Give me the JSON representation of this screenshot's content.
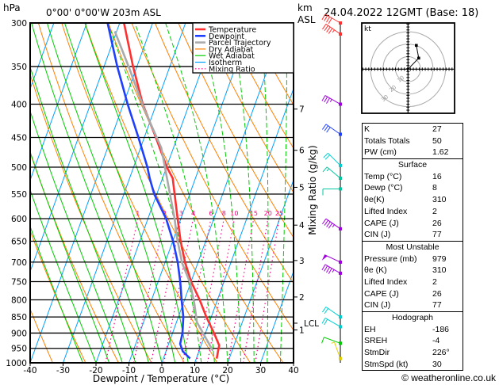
{
  "header": {
    "pressure_unit": "hPa",
    "location": "0°00' 0°00'W 203m ASL",
    "km_unit": "km",
    "asl_unit": "ASL",
    "datetime": "24.04.2022 12GMT (Base: 18)"
  },
  "chart_data": {
    "type": "line",
    "subtype": "skew-T log-P",
    "xlabel": "Dewpoint / Temperature (°C)",
    "ylabel": "hPa",
    "right_label": "Mixing Ratio (g/kg)",
    "xlim": [
      -40,
      40
    ],
    "ylim": [
      1000,
      300
    ],
    "x_ticks": [
      "-40",
      "-30",
      "-20",
      "-10",
      "0",
      "10",
      "20",
      "30",
      "40"
    ],
    "pressure_ticks": [
      "300",
      "350",
      "400",
      "450",
      "500",
      "550",
      "600",
      "650",
      "700",
      "750",
      "800",
      "850",
      "900",
      "950",
      "1000"
    ],
    "mixing_ratio_labels": [
      "1",
      "2",
      "3",
      "4",
      "6",
      "8",
      "10",
      "15",
      "20",
      "25"
    ],
    "km_ticks": [
      {
        "label": "1",
        "p": 890
      },
      {
        "label": "2",
        "p": 792
      },
      {
        "label": "3",
        "p": 696
      },
      {
        "label": "4",
        "p": 614
      },
      {
        "label": "5",
        "p": 537
      },
      {
        "label": "6",
        "p": 471
      },
      {
        "label": "7",
        "p": 407
      }
    ],
    "lcl": {
      "label": "LCL",
      "p": 869
    },
    "legend": {
      "placement": "top-right",
      "items": [
        {
          "label": "Temperature",
          "color": "#ff3030",
          "style": "thick"
        },
        {
          "label": "Dewpoint",
          "color": "#1f3fff",
          "style": "thick"
        },
        {
          "label": "Parcel Trajectory",
          "color": "#aaaaaa",
          "style": "thick"
        },
        {
          "label": "Dry Adiabat",
          "color": "#ff8000",
          "style": "thin"
        },
        {
          "label": "Wet Adiabat",
          "color": "#00cc00",
          "style": "thin"
        },
        {
          "label": "Isotherm",
          "color": "#00a0ff",
          "style": "thin"
        },
        {
          "label": "Mixing Ratio",
          "color": "#ff0080",
          "style": "dotted"
        }
      ]
    },
    "series": [
      {
        "name": "Temperature",
        "color": "#ff3030",
        "points": [
          [
            985,
            16.2
          ],
          [
            960,
            15.8
          ],
          [
            940,
            15.5
          ],
          [
            900,
            12.6
          ],
          [
            850,
            8.5
          ],
          [
            800,
            4.6
          ],
          [
            750,
            0
          ],
          [
            700,
            -4
          ],
          [
            650,
            -7.6
          ],
          [
            600,
            -11
          ],
          [
            550,
            -14.6
          ],
          [
            520,
            -16.9
          ],
          [
            500,
            -19.9
          ],
          [
            450,
            -26.5
          ],
          [
            400,
            -34.1
          ],
          [
            350,
            -41.2
          ],
          [
            300,
            -48.7
          ]
        ]
      },
      {
        "name": "Dewpoint",
        "color": "#1f3fff",
        "points": [
          [
            985,
            8.1
          ],
          [
            960,
            5.1
          ],
          [
            935,
            3.5
          ],
          [
            900,
            3
          ],
          [
            850,
            1.5
          ],
          [
            800,
            -0.9
          ],
          [
            750,
            -3.3
          ],
          [
            700,
            -6.2
          ],
          [
            650,
            -9.9
          ],
          [
            600,
            -14.5
          ],
          [
            550,
            -20.8
          ],
          [
            520,
            -23.9
          ],
          [
            500,
            -25.8
          ],
          [
            450,
            -31.8
          ],
          [
            400,
            -38.7
          ],
          [
            350,
            -46
          ],
          [
            300,
            -53.7
          ]
        ]
      },
      {
        "name": "Parcel Trajectory",
        "color": "#aaaaaa",
        "points": [
          [
            958,
            14.2
          ],
          [
            866,
            6.2
          ],
          [
            811,
            3.4
          ],
          [
            753,
            -0.2
          ],
          [
            702,
            -4.8
          ],
          [
            642,
            -9.1
          ],
          [
            600,
            -11.9
          ],
          [
            467,
            -23.7
          ],
          [
            406,
            -33.3
          ],
          [
            353,
            -42
          ],
          [
            309,
            -50.6
          ]
        ]
      }
    ],
    "winds": [
      {
        "p": 300,
        "dir": 240,
        "kt": 40,
        "color": "#ff3030"
      },
      {
        "p": 312,
        "dir": 235,
        "kt": 45,
        "color": "#ff3030"
      },
      {
        "p": 400,
        "dir": 240,
        "kt": 35,
        "color": "#a000e0"
      },
      {
        "p": 445,
        "dir": 235,
        "kt": 30,
        "color": "#1f3fff"
      },
      {
        "p": 497,
        "dir": 225,
        "kt": 20,
        "color": "#00d0d0"
      },
      {
        "p": 520,
        "dir": 230,
        "kt": 15,
        "color": "#00c8a0"
      },
      {
        "p": 540,
        "dir": 270,
        "kt": 10,
        "color": "#00c8a0"
      },
      {
        "p": 622,
        "dir": 235,
        "kt": 45,
        "color": "#a000e0"
      },
      {
        "p": 700,
        "dir": 245,
        "kt": 50,
        "color": "#a000e0"
      },
      {
        "p": 728,
        "dir": 240,
        "kt": 45,
        "color": "#a000e0"
      },
      {
        "p": 850,
        "dir": 235,
        "kt": 20,
        "color": "#00d0d0"
      },
      {
        "p": 880,
        "dir": 240,
        "kt": 20,
        "color": "#00d0d0"
      },
      {
        "p": 933,
        "dir": 250,
        "kt": 10,
        "color": "#00cc00"
      },
      {
        "p": 985,
        "dir": 200,
        "kt": 5,
        "color": "#e0d000"
      }
    ],
    "hodograph": {
      "unit": "kt",
      "ring_labels": [
        "10",
        "20",
        "30"
      ],
      "points_uv": [
        [
          0,
          0
        ],
        [
          9,
          9.3
        ],
        [
          7,
          20
        ]
      ]
    }
  },
  "indices": {
    "general": [
      {
        "label": "K",
        "value": "27"
      },
      {
        "label": "Totals Totals",
        "value": "50"
      },
      {
        "label": "PW (cm)",
        "value": "1.62"
      }
    ],
    "surface": {
      "title": "Surface",
      "rows": [
        {
          "label": "Temp (°C)",
          "value": "16"
        },
        {
          "label": "Dewp (°C)",
          "value": "8"
        },
        {
          "label": "θe(K)",
          "value": "310"
        },
        {
          "label": "Lifted Index",
          "value": "2"
        },
        {
          "label": "CAPE (J)",
          "value": "26"
        },
        {
          "label": "CIN (J)",
          "value": "77"
        }
      ]
    },
    "most_unstable": {
      "title": "Most Unstable",
      "rows": [
        {
          "label": "Pressure (mb)",
          "value": "979"
        },
        {
          "label": "θe (K)",
          "value": "310"
        },
        {
          "label": "Lifted Index",
          "value": "2"
        },
        {
          "label": "CAPE (J)",
          "value": "26"
        },
        {
          "label": "CIN (J)",
          "value": "77"
        }
      ]
    },
    "hodograph": {
      "title": "Hodograph",
      "rows": [
        {
          "label": "EH",
          "value": "-186"
        },
        {
          "label": "SREH",
          "value": "-4"
        },
        {
          "label": "StmDir",
          "value": "226°"
        },
        {
          "label": "StmSpd (kt)",
          "value": "30"
        }
      ]
    }
  },
  "footer": {
    "credit": "© weatheronline.co.uk"
  }
}
